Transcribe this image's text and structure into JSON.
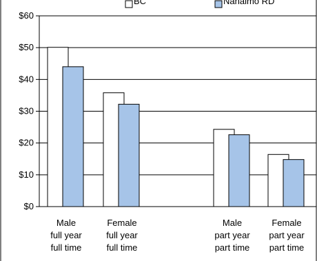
{
  "chart_data": {
    "type": "bar",
    "title": "",
    "xlabel": "",
    "ylabel": "",
    "ylim": [
      0,
      60
    ],
    "yticks": [
      0,
      10,
      20,
      30,
      40,
      50,
      60
    ],
    "ytick_labels": [
      "$0",
      "$10",
      "$20",
      "$30",
      "$40",
      "$50",
      "$60"
    ],
    "categories": [
      [
        "Male",
        "full year",
        "full time"
      ],
      [
        "Female",
        "full year",
        "full time"
      ],
      [
        "Male",
        "part year",
        "part time"
      ],
      [
        "Female",
        "part year",
        "part time"
      ]
    ],
    "category_groups": [
      "full year full time",
      "part year part time"
    ],
    "series": [
      {
        "name": "BC",
        "values": [
          50.1,
          35.8,
          24.3,
          16.4
        ],
        "color": "#ffffff"
      },
      {
        "name": "Nanaimo RD",
        "values": [
          44.0,
          32.2,
          22.6,
          14.8
        ],
        "color": "#a6c4e8"
      }
    ],
    "legend_position": "top",
    "grid": {
      "horizontal": true,
      "vertical": false
    }
  }
}
